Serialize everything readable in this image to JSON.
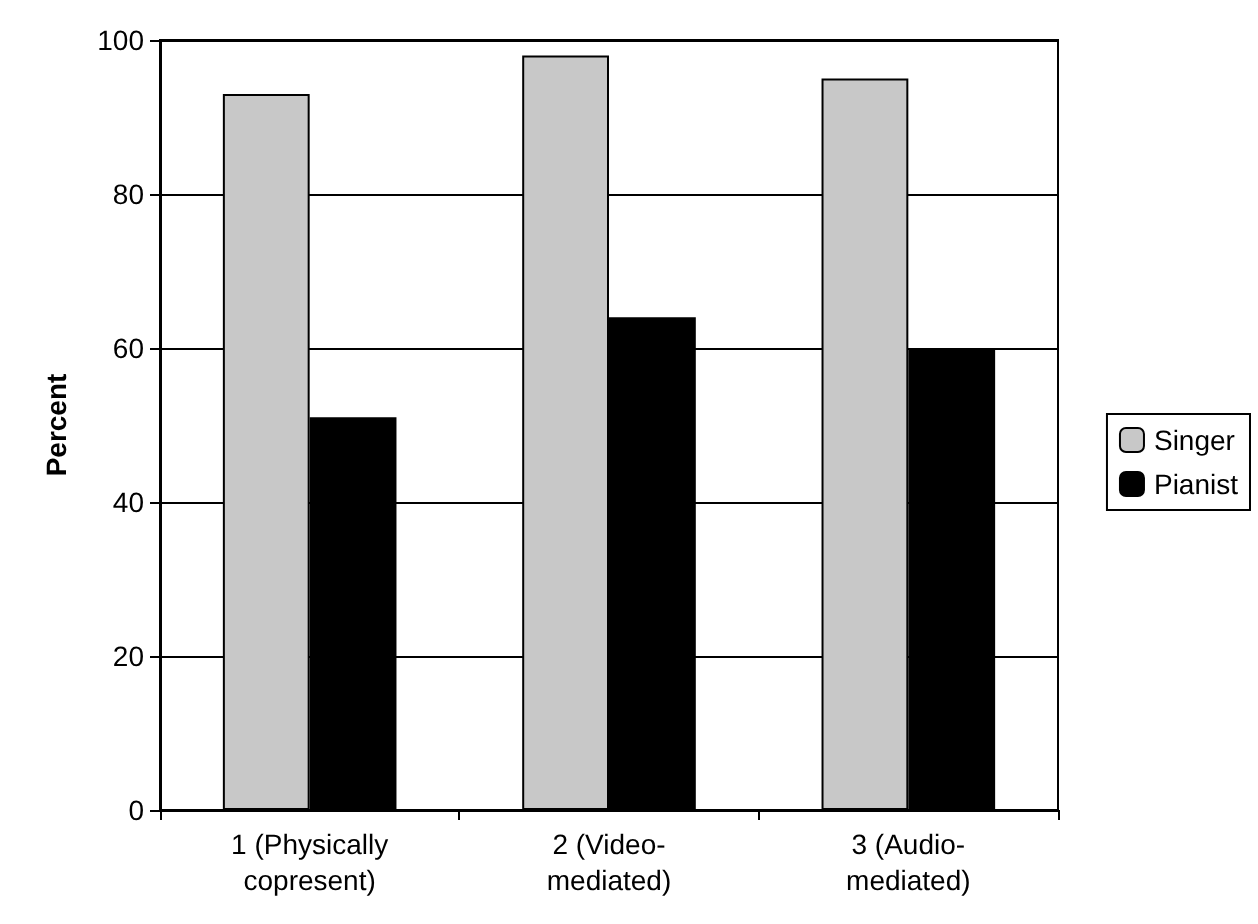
{
  "chart_data": {
    "type": "bar",
    "ylabel": "Percent",
    "categories": [
      "1 (Physically\ncopresent)",
      "2 (Video-\nmediated)",
      "3 (Audio-\nmediated)"
    ],
    "series": [
      {
        "name": "Singer",
        "color": "#c8c8c8",
        "values": [
          93,
          98,
          95
        ]
      },
      {
        "name": "Pianist",
        "color": "#000000",
        "values": [
          51,
          64,
          60
        ]
      }
    ],
    "ylim": [
      0,
      100
    ],
    "yticks": [
      0,
      20,
      40,
      60,
      80,
      100
    ],
    "grid": "y",
    "legend": "right"
  }
}
